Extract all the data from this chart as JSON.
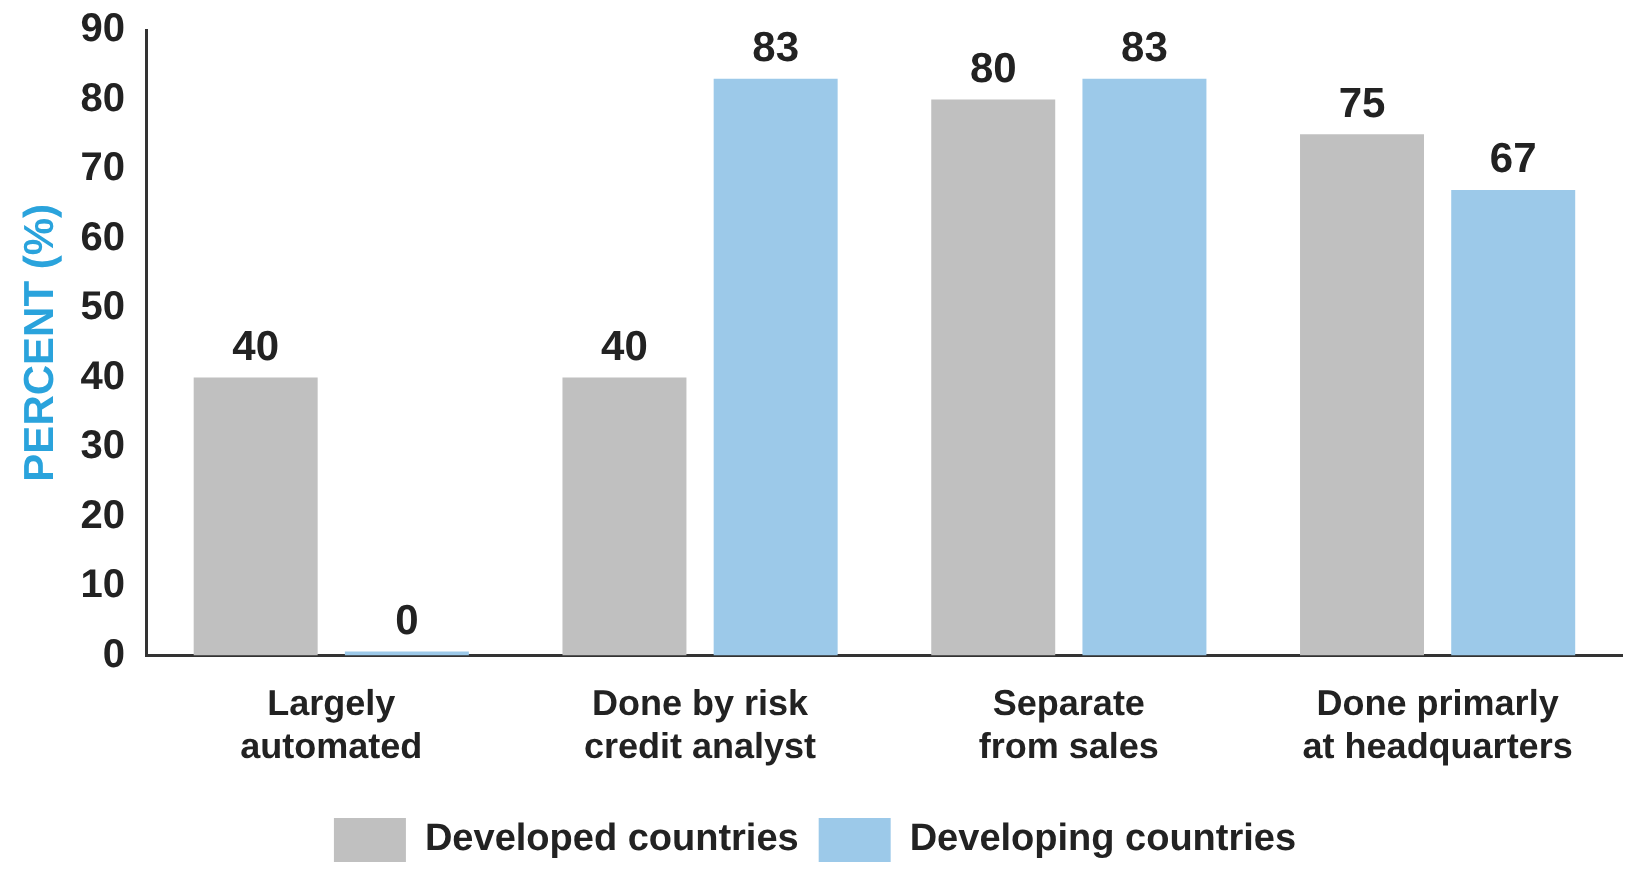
{
  "chart_data": {
    "type": "bar",
    "ylabel": "PERCENT (%)",
    "categories": [
      "Largely\nautomated",
      "Done by risk\ncredit analyst",
      "Separate\nfrom sales",
      "Done primarly\nat headquarters"
    ],
    "series": [
      {
        "name": "Developed countries",
        "color": "#c0c0c0",
        "values": [
          40,
          40,
          80,
          75
        ]
      },
      {
        "name": "Developing countries",
        "color": "#9cc9e9",
        "values": [
          0,
          83,
          83,
          67
        ]
      }
    ],
    "ylim": [
      0,
      90
    ],
    "yticks": [
      0,
      10,
      20,
      30,
      40,
      50,
      60,
      70,
      80,
      90
    ],
    "grid": false,
    "legend": "bottom",
    "data_labels": true
  }
}
